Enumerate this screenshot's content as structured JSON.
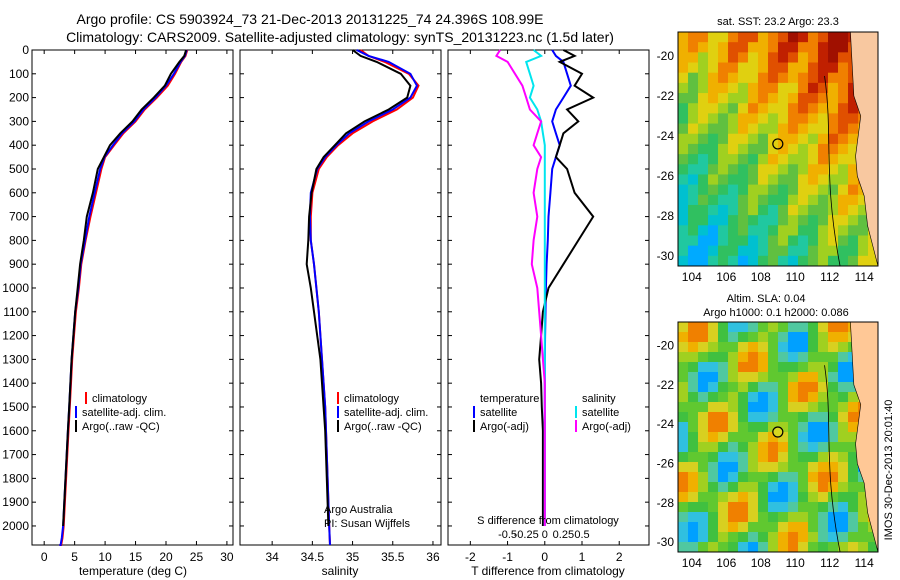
{
  "title_line1": "Argo profile: CS 5903924_73 21-Dec-2013 20131225_74 24.396S 108.99E",
  "title_line2": "Climatology: CARS2009. Satellite-adjusted climatology: synTS_20131223.nc (1.5d later)",
  "credit": "IMOS 30-Dec-2013 20:01:40",
  "colors": {
    "climatology": "#ff0000",
    "satellite": "#0000ff",
    "argo": "#000000",
    "sat_cyan": "#00e5ee",
    "argo_magenta": "#ff00ff"
  },
  "chart_data": [
    {
      "type": "line",
      "panel": "temperature",
      "xlabel": "temperature (deg C)",
      "xlim": [
        -2,
        31
      ],
      "xticks": [
        0,
        5,
        10,
        15,
        20,
        25,
        30
      ],
      "ylim": [
        2080,
        0
      ],
      "yticks": [
        0,
        100,
        200,
        300,
        400,
        500,
        600,
        700,
        800,
        900,
        1000,
        1100,
        1200,
        1300,
        1400,
        1500,
        1600,
        1700,
        1800,
        1900,
        2000
      ],
      "legend": [
        "climatology",
        "satellite-adj. clim.",
        "Argo(..raw -QC)"
      ],
      "series": [
        {
          "name": "climatology",
          "x": [
            23.5,
            23.2,
            22.5,
            21.5,
            20.3,
            18.5,
            16.5,
            15,
            13,
            11.5,
            10,
            9.4,
            8.5,
            7.6,
            6.8,
            6.1,
            5.7,
            5.2,
            4.9,
            4.6,
            4.4,
            4.2,
            4.0,
            3.8,
            3.6,
            3.4,
            3.2,
            3.0,
            2.8,
            2.6,
            2.5
          ],
          "y": [
            0,
            25,
            50,
            100,
            150,
            200,
            250,
            300,
            350,
            400,
            450,
            500,
            600,
            700,
            800,
            900,
            1000,
            1100,
            1200,
            1300,
            1400,
            1500,
            1600,
            1700,
            1800,
            1900,
            2000,
            2050,
            2080,
            2080,
            2080
          ]
        },
        {
          "name": "satellite-adj. clim.",
          "x": [
            23.4,
            23.1,
            22.4,
            21.3,
            20.0,
            18.3,
            16.3,
            14.8,
            12.8,
            11.3,
            9.9,
            9.2,
            8.3,
            7.4,
            6.7,
            6.0,
            5.6,
            5.1,
            4.8,
            4.5,
            4.3,
            4.1,
            3.9,
            3.7,
            3.5,
            3.3,
            3.1,
            2.9,
            2.7,
            2.6,
            2.5
          ],
          "y": [
            0,
            25,
            50,
            100,
            150,
            200,
            250,
            300,
            350,
            400,
            450,
            500,
            600,
            700,
            800,
            900,
            1000,
            1100,
            1200,
            1300,
            1400,
            1500,
            1600,
            1700,
            1800,
            1900,
            2000,
            2050,
            2080,
            2080,
            2080
          ]
        },
        {
          "name": "Argo(..raw -QC)",
          "x": [
            23.3,
            23.0,
            22.2,
            20.8,
            19.8,
            18.0,
            16.0,
            14.5,
            12.5,
            10.8,
            9.8,
            8.8,
            8.0,
            7.0,
            6.5,
            5.9,
            5.5,
            5.1,
            4.8,
            4.5,
            4.3,
            4.1,
            3.9,
            3.7,
            3.5,
            3.3,
            3.1
          ],
          "y": [
            0,
            25,
            50,
            100,
            150,
            200,
            250,
            300,
            350,
            400,
            450,
            500,
            600,
            700,
            800,
            900,
            1000,
            1100,
            1200,
            1300,
            1400,
            1500,
            1600,
            1700,
            1800,
            1900,
            2000
          ]
        }
      ]
    },
    {
      "type": "line",
      "panel": "salinity",
      "xlabel": "salinity",
      "xlim": [
        33.6,
        36.1
      ],
      "xticks": [
        34,
        34.5,
        35,
        35.5,
        36
      ],
      "ylim": [
        2080,
        0
      ],
      "legend": [
        "climatology",
        "satellite-adj. clim.",
        "Argo(..raw -QC)"
      ],
      "annotation": [
        "Argo Australia",
        "PI: Susan Wijffels"
      ],
      "series": [
        {
          "name": "climatology",
          "x": [
            35.1,
            35.2,
            35.4,
            35.7,
            35.82,
            35.75,
            35.55,
            35.25,
            35.0,
            34.82,
            34.68,
            34.58,
            34.5,
            34.48,
            34.48,
            34.52,
            34.55,
            34.58,
            34.6,
            34.62,
            34.64,
            34.66,
            34.67,
            34.68,
            34.69,
            34.7,
            34.71,
            34.72
          ],
          "y": [
            0,
            25,
            50,
            100,
            150,
            200,
            250,
            300,
            350,
            400,
            450,
            500,
            600,
            700,
            800,
            900,
            1000,
            1100,
            1200,
            1300,
            1400,
            1500,
            1600,
            1700,
            1800,
            1900,
            2000,
            2080
          ]
        },
        {
          "name": "satellite-adj. clim.",
          "x": [
            35.05,
            35.2,
            35.45,
            35.72,
            35.8,
            35.72,
            35.5,
            35.2,
            34.96,
            34.8,
            34.66,
            34.56,
            34.48,
            34.47,
            34.48,
            34.52,
            34.55,
            34.58,
            34.6,
            34.62,
            34.64,
            34.66,
            34.67,
            34.68,
            34.69,
            34.7,
            34.71,
            34.72
          ],
          "y": [
            0,
            25,
            50,
            100,
            150,
            200,
            250,
            300,
            350,
            400,
            450,
            500,
            600,
            700,
            800,
            900,
            1000,
            1100,
            1200,
            1300,
            1400,
            1500,
            1600,
            1700,
            1800,
            1900,
            2000,
            2080
          ]
        },
        {
          "name": "Argo(..raw -QC)",
          "x": [
            35.0,
            35.1,
            35.3,
            35.6,
            35.72,
            35.68,
            35.45,
            35.15,
            34.92,
            34.78,
            34.64,
            34.55,
            34.49,
            34.46,
            34.45,
            34.43,
            34.48,
            34.52,
            34.56,
            34.6,
            34.62,
            34.64,
            34.66,
            34.67,
            34.68,
            34.69,
            34.7
          ],
          "y": [
            0,
            25,
            50,
            100,
            150,
            200,
            250,
            300,
            350,
            400,
            450,
            500,
            600,
            700,
            800,
            900,
            1000,
            1100,
            1200,
            1300,
            1400,
            1500,
            1600,
            1700,
            1800,
            1900,
            2000
          ]
        }
      ]
    },
    {
      "type": "line",
      "panel": "difference",
      "xlabel": "T difference from climatology",
      "xlabel_top": "S difference from climatology",
      "xlim": [
        -2.6,
        2.8
      ],
      "xticks": [
        -2,
        -1,
        0,
        1,
        2
      ],
      "sticks_labels": [
        "-0.5",
        "-0.25",
        "0",
        "0.25",
        "0.5"
      ],
      "ylim": [
        2080,
        0
      ],
      "legend_temperature_title": "temperature",
      "legend_salinity_title": "salinity",
      "legend_items": [
        "satellite",
        "Argo(-adj)"
      ],
      "series": [
        {
          "name": "temperature satellite",
          "x": [
            0.2,
            0.3,
            0.5,
            0.6,
            0.7,
            0.5,
            0.3,
            0.2,
            0.3,
            0.4,
            0.3,
            0.2,
            0.15,
            0.1,
            0.08,
            0.05,
            0.03,
            0.02,
            0.01,
            0.0,
            0.0,
            0.0,
            0.0,
            0.0,
            0.0,
            0.0,
            0.0
          ],
          "y": [
            0,
            25,
            50,
            100,
            150,
            200,
            250,
            300,
            350,
            400,
            450,
            500,
            600,
            700,
            800,
            900,
            1000,
            1100,
            1200,
            1300,
            1400,
            1500,
            1600,
            1700,
            1800,
            1900,
            2000
          ]
        },
        {
          "name": "temperature Argo(-adj)",
          "x": [
            0.5,
            0.8,
            0.4,
            1.0,
            0.8,
            1.3,
            0.6,
            0.9,
            0.5,
            0.4,
            0.3,
            0.6,
            0.8,
            1.3,
            0.9,
            0.5,
            0.1,
            -0.05,
            -0.1,
            -0.15,
            -0.1,
            -0.08,
            -0.05,
            -0.05,
            -0.05,
            -0.05,
            -0.05
          ],
          "y": [
            0,
            25,
            50,
            100,
            150,
            200,
            250,
            300,
            350,
            400,
            450,
            500,
            600,
            700,
            800,
            900,
            1000,
            1100,
            1200,
            1300,
            1400,
            1500,
            1600,
            1700,
            1800,
            1900,
            2000
          ]
        },
        {
          "name": "salinity satellite",
          "x": [
            -0.3,
            -0.1,
            -0.5,
            -0.4,
            -0.3,
            -0.4,
            -0.2,
            -0.1,
            -0.05,
            0.0,
            0.0,
            0.0,
            0.0,
            0.0,
            0.0,
            0.0,
            0.0,
            0.0,
            0.0,
            0.0,
            0.0,
            0.0,
            0.0,
            0.0,
            0.0,
            0.0,
            0.0
          ],
          "y": [
            0,
            25,
            50,
            100,
            150,
            200,
            250,
            300,
            350,
            400,
            450,
            500,
            600,
            700,
            800,
            900,
            1000,
            1100,
            1200,
            1300,
            1400,
            1500,
            1600,
            1700,
            1800,
            1900,
            2000
          ]
        },
        {
          "name": "salinity Argo(-adj)",
          "x": [
            -1.2,
            -1.3,
            -1.0,
            -0.8,
            -0.6,
            -0.5,
            -0.4,
            -0.1,
            -0.2,
            -0.3,
            -0.1,
            -0.2,
            -0.3,
            -0.2,
            -0.3,
            -0.35,
            -0.2,
            -0.15,
            -0.1,
            -0.05,
            0.0,
            0.0,
            0.0,
            0.0,
            0.0,
            0.0,
            0.0
          ],
          "y": [
            0,
            25,
            50,
            100,
            150,
            200,
            250,
            300,
            350,
            400,
            450,
            500,
            600,
            700,
            800,
            900,
            1000,
            1100,
            1200,
            1300,
            1400,
            1500,
            1600,
            1700,
            1800,
            1900,
            2000
          ]
        }
      ]
    },
    {
      "type": "heatmap",
      "panel": "sst-map",
      "title": "sat. SST: 23.2 Argo: 23.3",
      "xticks": [
        104,
        106,
        108,
        110,
        112,
        114
      ],
      "yticks": [
        -20,
        -22,
        -24,
        -26,
        -28,
        -30
      ],
      "xlim": [
        103.2,
        114.8
      ],
      "ylim": [
        -30.5,
        -18.8
      ],
      "marker": {
        "lon": 108.99,
        "lat": -24.396
      }
    },
    {
      "type": "heatmap",
      "panel": "sla-map",
      "title_line1": "Altim. SLA: 0.04",
      "title_line2": "Argo h1000: 0.1 h2000: 0.086",
      "xticks": [
        104,
        106,
        108,
        110,
        112,
        114
      ],
      "yticks": [
        -20,
        -22,
        -24,
        -26,
        -28,
        -30
      ],
      "xlim": [
        103.2,
        114.8
      ],
      "ylim": [
        -30.5,
        -18.8
      ],
      "marker": {
        "lon": 108.99,
        "lat": -24.396
      }
    }
  ]
}
